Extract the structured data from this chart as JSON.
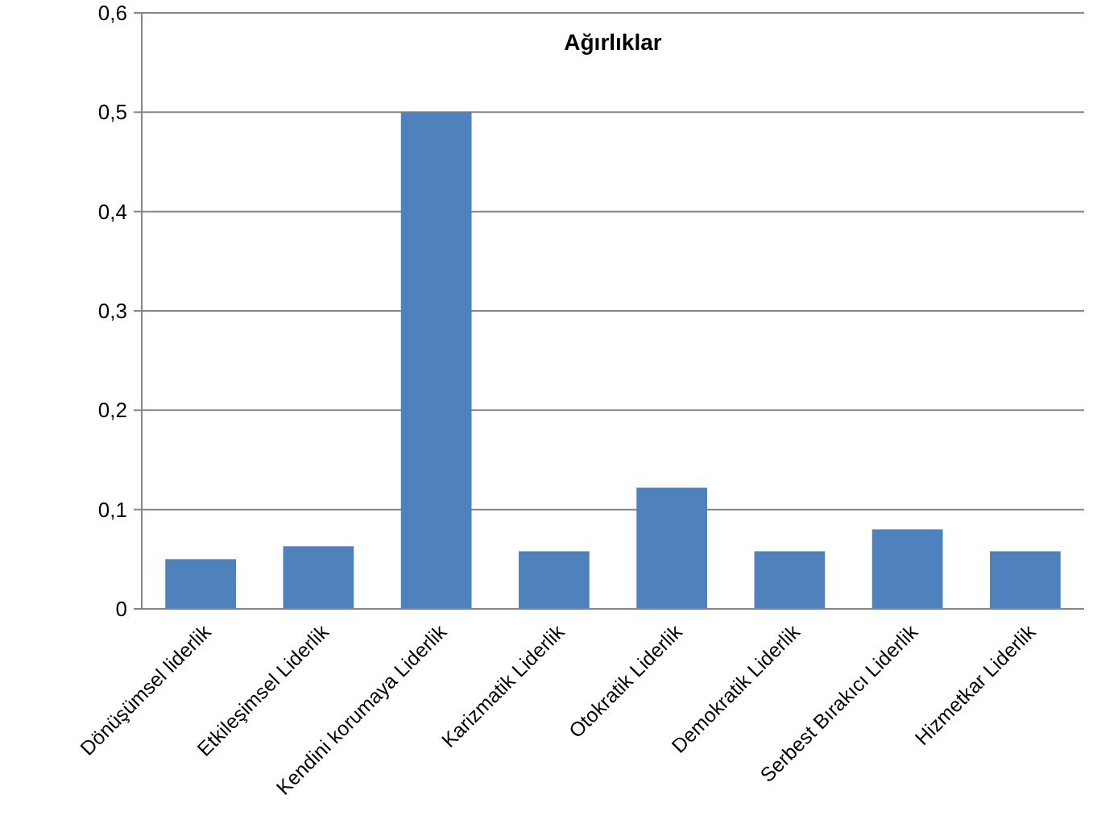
{
  "chart_data": {
    "type": "bar",
    "title": "Ağırlıklar",
    "categories": [
      "Dönüşümsel liderlik",
      "Etkileşimsel Liderlik",
      "Kendini korumaya Liderlik",
      "Karizmatik Liderlik",
      "Otokratik Liderlik",
      "Demokratik Liderlik",
      "Serbest Bırakıcı Liderlik",
      "Hizmetkar Liderlik"
    ],
    "values": [
      0.05,
      0.063,
      0.5,
      0.058,
      0.122,
      0.058,
      0.08,
      0.058
    ],
    "color": "#4f81bd",
    "ylim": [
      0,
      0.6
    ],
    "yticks": [
      {
        "value": 0,
        "label": "0"
      },
      {
        "value": 0.1,
        "label": "0,1"
      },
      {
        "value": 0.2,
        "label": "0,2"
      },
      {
        "value": 0.3,
        "label": "0,3"
      },
      {
        "value": 0.4,
        "label": "0,4"
      },
      {
        "value": 0.5,
        "label": "0,5"
      },
      {
        "value": 0.6,
        "label": "0,6"
      }
    ],
    "grid": true
  }
}
